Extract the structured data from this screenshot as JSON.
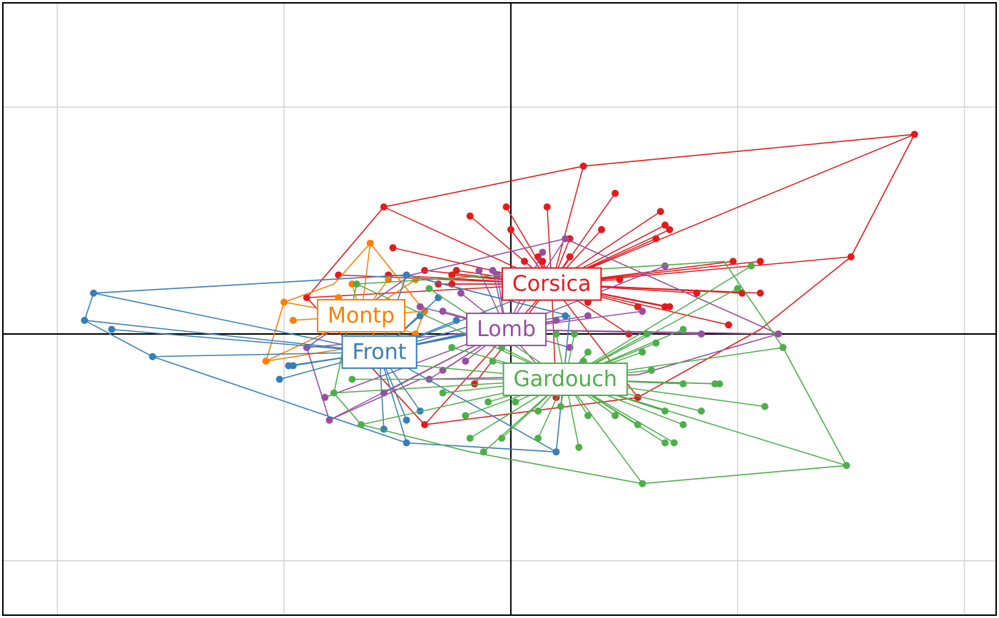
{
  "chart_data": {
    "type": "scatter",
    "description_kind": "star-and-hull ordination plot",
    "xlim": [
      -1.12,
      1.07
    ],
    "ylim": [
      -0.62,
      0.73
    ],
    "grid": true,
    "grid_x": [
      -1.0,
      -0.5,
      0.5,
      1.0
    ],
    "grid_y": [
      -0.5,
      0.5
    ],
    "origin_axes": true,
    "series": [
      {
        "name": "Corsica",
        "color": "#e41a1c",
        "centroid": [
          0.09,
          0.11
        ],
        "points": [
          [
            0.89,
            0.44
          ],
          [
            0.16,
            0.37
          ],
          [
            -0.28,
            0.28
          ],
          [
            0.75,
            0.17
          ],
          [
            0.23,
            0.31
          ],
          [
            0.33,
            0.27
          ],
          [
            0.34,
            0.24
          ],
          [
            -0.09,
            0.26
          ],
          [
            -0.01,
            0.28
          ],
          [
            0.08,
            0.28
          ],
          [
            0.0,
            0.23
          ],
          [
            0.2,
            0.23
          ],
          [
            0.13,
            0.21
          ],
          [
            0.35,
            0.23
          ],
          [
            0.32,
            0.21
          ],
          [
            -0.26,
            0.19
          ],
          [
            0.06,
            0.17
          ],
          [
            0.13,
            0.17
          ],
          [
            0.07,
            0.16
          ],
          [
            -0.12,
            0.14
          ],
          [
            -0.19,
            0.14
          ],
          [
            -0.13,
            0.13
          ],
          [
            0.49,
            0.16
          ],
          [
            -0.38,
            0.13
          ],
          [
            -0.27,
            0.13
          ],
          [
            -0.13,
            0.11
          ],
          [
            0.03,
            0.16
          ],
          [
            -0.16,
            0.11
          ],
          [
            -0.45,
            0.08
          ],
          [
            0.41,
            0.09
          ],
          [
            0.51,
            0.09
          ],
          [
            0.24,
            0.12
          ],
          [
            0.28,
            0.06
          ],
          [
            0.15,
            0.09
          ],
          [
            0.34,
            0.06
          ],
          [
            0.35,
            0.06
          ],
          [
            0.17,
            0.07
          ],
          [
            0.55,
            0.09
          ],
          [
            0.48,
            0.02
          ],
          [
            0.55,
            0.16
          ],
          [
            0.28,
            -0.14
          ],
          [
            -0.19,
            -0.2
          ],
          [
            0.1,
            -0.14
          ],
          [
            -0.08,
            -0.11
          ],
          [
            0.26,
            0.0
          ]
        ],
        "hull": [
          [
            0.89,
            0.44
          ],
          [
            0.75,
            0.17
          ],
          [
            0.55,
            0.01
          ],
          [
            0.28,
            -0.14
          ],
          [
            -0.19,
            -0.2
          ],
          [
            -0.45,
            0.08
          ],
          [
            -0.28,
            0.28
          ],
          [
            0.16,
            0.37
          ]
        ]
      },
      {
        "name": "Montp",
        "color": "#ff7f00",
        "centroid": [
          -0.33,
          0.04
        ],
        "points": [
          [
            -0.31,
            0.2
          ],
          [
            -0.5,
            0.07
          ],
          [
            -0.48,
            0.03
          ],
          [
            -0.54,
            -0.06
          ],
          [
            -0.27,
            0.12
          ],
          [
            -0.35,
            0.11
          ],
          [
            -0.21,
            0.12
          ],
          [
            -0.19,
            0.05
          ],
          [
            -0.24,
            0.02
          ],
          [
            -0.38,
            0.08
          ],
          [
            -0.4,
            0.04
          ],
          [
            -0.29,
            -0.02
          ],
          [
            -0.21,
            0.0
          ]
        ],
        "hull": [
          [
            -0.31,
            0.2
          ],
          [
            -0.19,
            0.05
          ],
          [
            -0.21,
            0.0
          ],
          [
            -0.29,
            -0.02
          ],
          [
            -0.54,
            -0.06
          ],
          [
            -0.5,
            0.07
          ],
          [
            -0.39,
            0.11
          ]
        ]
      },
      {
        "name": "Lomb",
        "color": "#984ea3",
        "centroid": [
          -0.01,
          0.01
        ],
        "points": [
          [
            0.12,
            0.21
          ],
          [
            0.07,
            0.18
          ],
          [
            0.34,
            0.15
          ],
          [
            0.59,
            0.0
          ],
          [
            0.29,
            0.05
          ],
          [
            0.17,
            0.04
          ],
          [
            0.42,
            0.0
          ],
          [
            -0.45,
            -0.03
          ],
          [
            -0.41,
            -0.14
          ],
          [
            -0.4,
            -0.19
          ],
          [
            -0.28,
            -0.13
          ],
          [
            -0.18,
            -0.1
          ],
          [
            -0.15,
            -0.08
          ],
          [
            -0.2,
            0.06
          ],
          [
            -0.15,
            0.05
          ],
          [
            -0.07,
            0.14
          ],
          [
            -0.11,
            0.09
          ],
          [
            -0.04,
            0.14
          ],
          [
            -0.03,
            0.13
          ],
          [
            0.1,
            0.03
          ],
          [
            0.13,
            -0.03
          ],
          [
            0.06,
            -0.07
          ],
          [
            -0.1,
            -0.06
          ]
        ],
        "hull": [
          [
            0.12,
            0.21
          ],
          [
            0.59,
            0.0
          ],
          [
            0.28,
            -0.09
          ],
          [
            -0.2,
            -0.1
          ],
          [
            -0.4,
            -0.19
          ],
          [
            -0.45,
            -0.03
          ],
          [
            -0.22,
            0.13
          ]
        ]
      },
      {
        "name": "Front",
        "color": "#377eb8",
        "centroid": [
          -0.29,
          -0.04
        ],
        "points": [
          [
            -0.92,
            0.09
          ],
          [
            -0.94,
            0.03
          ],
          [
            -0.88,
            0.01
          ],
          [
            -0.79,
            -0.05
          ],
          [
            -0.51,
            -0.1
          ],
          [
            -0.49,
            -0.07
          ],
          [
            -0.48,
            -0.07
          ],
          [
            -0.23,
            -0.19
          ],
          [
            -0.28,
            -0.21
          ],
          [
            -0.2,
            -0.17
          ],
          [
            0.1,
            -0.26
          ],
          [
            -0.23,
            -0.24
          ],
          [
            -0.16,
            0.08
          ],
          [
            0.12,
            0.04
          ],
          [
            -0.2,
            0.04
          ],
          [
            -0.23,
            0.13
          ],
          [
            0.1,
            0.11
          ],
          [
            -0.08,
            0.02
          ],
          [
            -0.12,
            0.03
          ],
          [
            -0.06,
            0.01
          ],
          [
            0.0,
            0.02
          ]
        ],
        "hull": [
          [
            -0.92,
            0.09
          ],
          [
            -0.23,
            0.13
          ],
          [
            0.13,
            0.04
          ],
          [
            0.1,
            -0.26
          ],
          [
            -0.23,
            -0.24
          ],
          [
            -0.79,
            -0.05
          ],
          [
            -0.94,
            0.03
          ]
        ]
      },
      {
        "name": "Gardouch",
        "color": "#4daf4a",
        "centroid": [
          0.12,
          -0.1
        ],
        "points": [
          [
            0.74,
            -0.29
          ],
          [
            0.29,
            -0.33
          ],
          [
            0.6,
            -0.03
          ],
          [
            0.53,
            0.15
          ],
          [
            0.5,
            0.1
          ],
          [
            -0.34,
            0.11
          ],
          [
            -0.18,
            0.1
          ],
          [
            -0.39,
            -0.13
          ],
          [
            -0.33,
            -0.2
          ],
          [
            -0.1,
            -0.18
          ],
          [
            -0.09,
            -0.23
          ],
          [
            -0.02,
            -0.23
          ],
          [
            -0.06,
            -0.26
          ],
          [
            0.06,
            -0.23
          ],
          [
            0.15,
            -0.25
          ],
          [
            0.17,
            -0.18
          ],
          [
            0.23,
            -0.18
          ],
          [
            0.28,
            -0.2
          ],
          [
            0.34,
            -0.24
          ],
          [
            0.36,
            -0.24
          ],
          [
            0.38,
            -0.2
          ],
          [
            0.34,
            -0.17
          ],
          [
            0.42,
            -0.17
          ],
          [
            0.56,
            -0.16
          ],
          [
            0.45,
            -0.11
          ],
          [
            0.38,
            -0.11
          ],
          [
            0.31,
            -0.08
          ],
          [
            0.29,
            -0.04
          ],
          [
            0.32,
            -0.02
          ],
          [
            0.38,
            0.01
          ],
          [
            0.3,
            0.0
          ],
          [
            0.17,
            -0.04
          ],
          [
            0.16,
            -0.06
          ],
          [
            -0.13,
            -0.03
          ],
          [
            -0.31,
            -0.06
          ],
          [
            -0.35,
            -0.1
          ],
          [
            -0.15,
            -0.13
          ],
          [
            -0.05,
            -0.15
          ],
          [
            0.01,
            -0.15
          ],
          [
            0.06,
            -0.17
          ],
          [
            0.11,
            -0.16
          ],
          [
            -0.04,
            -0.06
          ],
          [
            -0.02,
            -0.03
          ],
          [
            0.1,
            0.0
          ],
          [
            0.14,
            0.0
          ],
          [
            0.22,
            -0.11
          ],
          [
            0.25,
            -0.11
          ],
          [
            0.46,
            -0.11
          ]
        ],
        "hull": [
          [
            0.47,
            0.16
          ],
          [
            0.6,
            -0.03
          ],
          [
            0.74,
            -0.29
          ],
          [
            0.29,
            -0.33
          ],
          [
            -0.09,
            -0.26
          ],
          [
            -0.33,
            -0.2
          ],
          [
            -0.39,
            -0.13
          ],
          [
            -0.34,
            0.11
          ]
        ]
      }
    ]
  }
}
